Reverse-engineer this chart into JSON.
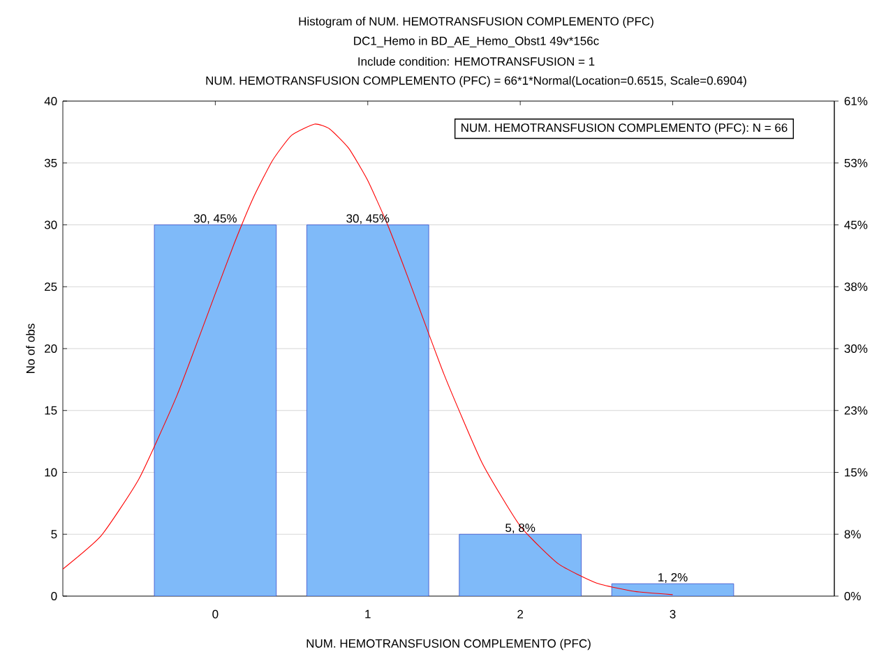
{
  "chart_data": {
    "type": "bar",
    "title": "Histogram of NUM. HEMOTRANSFUSION COMPLEMENTO (PFC)",
    "subtitle": "DC1_Hemo in BD_AE_Hemo_Obst1 49v*156c",
    "annotations": [
      "Include condition: HEMOTRANSFUSION = 1",
      "NUM. HEMOTRANSFUSION COMPLEMENTO (PFC) = 66*1*Normal(Location=0.6515, Scale=0.6904)",
      "NUM. HEMOTRANSFUSION COMPLEMENTO (PFC):  N = 66"
    ],
    "xlabel": "NUM. HEMOTRANSFUSION COMPLEMENTO (PFC)",
    "ylabel": "No of obs",
    "x": [
      0,
      1,
      2,
      3
    ],
    "xlim": [
      -1,
      4.06
    ],
    "xticks": [
      0,
      1,
      2,
      3
    ],
    "ylim": [
      0,
      40
    ],
    "yticks": [
      0,
      5,
      10,
      15,
      20,
      25,
      30,
      35,
      40
    ],
    "y2lim": [
      0,
      60.61
    ],
    "y2ticks": [
      {
        "value": 0,
        "label": "0%"
      },
      {
        "value": 7.58,
        "label": "8%"
      },
      {
        "value": 15.15,
        "label": "15%"
      },
      {
        "value": 22.73,
        "label": "23%"
      },
      {
        "value": 30.3,
        "label": "30%"
      },
      {
        "value": 37.88,
        "label": "38%"
      },
      {
        "value": 45.45,
        "label": "45%"
      },
      {
        "value": 53.03,
        "label": "53%"
      },
      {
        "value": 60.61,
        "label": "61%"
      }
    ],
    "grid": "y",
    "series": [
      {
        "color": "#7fbaf9",
        "values": [
          30,
          30,
          5,
          1
        ],
        "value_labels": [
          "30, 45%",
          "30, 45%",
          "5, 8%",
          "1, 2%"
        ]
      },
      {
        "type": "line",
        "color": "#ff0000",
        "marker": "none",
        "line_style": "solid",
        "x": [
          -1,
          -0.75,
          -0.5,
          -0.25,
          0,
          0.125,
          0.25,
          0.375,
          0.5,
          0.6515,
          0.75,
          0.875,
          1,
          1.125,
          1.25,
          1.5,
          1.75,
          2,
          2.25,
          2.5,
          2.75,
          3
        ],
        "values": [
          2.18,
          4.86,
          9.49,
          16.26,
          24.44,
          28.52,
          32.21,
          35.2,
          37.23,
          38.14,
          37.75,
          36.19,
          33.58,
          30.15,
          26.19,
          17.92,
          10.76,
          5.66,
          2.61,
          1.06,
          0.38,
          0.12
        ]
      }
    ]
  }
}
